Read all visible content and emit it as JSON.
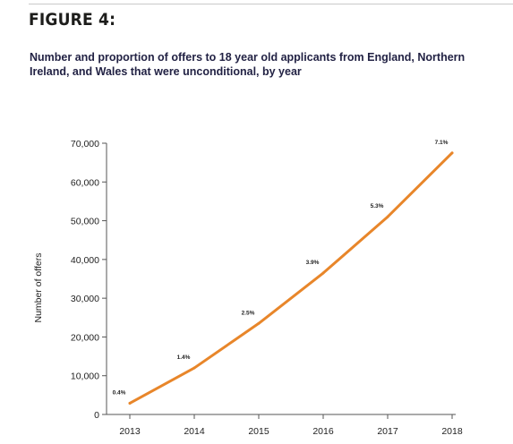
{
  "figure": {
    "label": "FIGURE 4:",
    "title": "Number and proportion of offers to 18 year old applicants from England, Northern Ireland, and Wales that were unconditional, by year"
  },
  "colors": {
    "line": "#e8862a",
    "axis": "#555555",
    "title": "#222244"
  },
  "chart_data": {
    "type": "line",
    "title": "Number and proportion of offers to 18 year old applicants from England, Northern Ireland, and Wales that were unconditional, by year",
    "xlabel": "",
    "ylabel": "Number of offers",
    "x": [
      "2013",
      "2014",
      "2015",
      "2016",
      "2017",
      "2018"
    ],
    "series": [
      {
        "values": [
          2900,
          12000,
          23500,
          36500,
          51000,
          67500
        ],
        "data_labels": [
          "0.4%",
          "1.4%",
          "2.5%",
          "3.9%",
          "5.3%",
          "7.1%"
        ]
      }
    ],
    "ylim": [
      0,
      70000
    ],
    "yticks": [
      0,
      10000,
      20000,
      30000,
      40000,
      50000,
      60000,
      70000
    ],
    "ytick_labels": [
      "0",
      "10,000",
      "20,000",
      "30,000",
      "40,000",
      "50,000",
      "60,000",
      "70,000"
    ],
    "grid": false,
    "legend": "none"
  }
}
